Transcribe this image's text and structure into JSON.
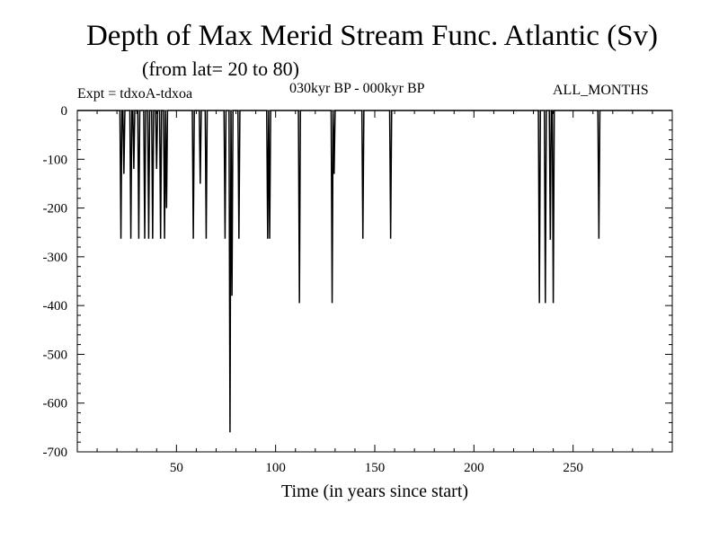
{
  "chart_data": {
    "type": "line",
    "title": "Depth of Max Merid Stream Func. Atlantic (Sv)",
    "subtitle": "(from lat= 20 to 80)",
    "annotations": {
      "experiment": "Expt = tdxoA-tdxoa",
      "period": "030kyr BP - 000kyr BP",
      "months": "ALL_MONTHS"
    },
    "xlabel": "Time (in years since start)",
    "ylabel": "",
    "xlim": [
      0,
      300
    ],
    "ylim": [
      -700,
      0
    ],
    "x_ticks": [
      50,
      100,
      150,
      200,
      250
    ],
    "y_ticks": [
      0,
      -100,
      -200,
      -300,
      -400,
      -500,
      -600,
      -700
    ],
    "grid": false,
    "series": [
      {
        "color": "#000000",
        "baseline": 0,
        "dips": [
          [
            22,
            -263
          ],
          [
            23.5,
            -130
          ],
          [
            27,
            -263
          ],
          [
            28.5,
            -120
          ],
          [
            31,
            -263
          ],
          [
            34,
            -263
          ],
          [
            36,
            -263
          ],
          [
            38,
            -263
          ],
          [
            40,
            -120
          ],
          [
            42,
            -263
          ],
          [
            44,
            -263
          ],
          [
            45,
            -200
          ],
          [
            58.5,
            -263
          ],
          [
            62,
            -150
          ],
          [
            65,
            -263
          ],
          [
            74.5,
            -263
          ],
          [
            77,
            -660
          ],
          [
            78,
            -380
          ],
          [
            81.5,
            -263
          ],
          [
            96,
            -263
          ],
          [
            97,
            -263
          ],
          [
            112,
            -395
          ],
          [
            128.5,
            -395
          ],
          [
            129.5,
            -130
          ],
          [
            144,
            -263
          ],
          [
            158,
            -263
          ],
          [
            233,
            -395
          ],
          [
            236,
            -395
          ],
          [
            238.5,
            -265
          ],
          [
            240,
            -395
          ],
          [
            263,
            -263
          ]
        ]
      }
    ]
  }
}
